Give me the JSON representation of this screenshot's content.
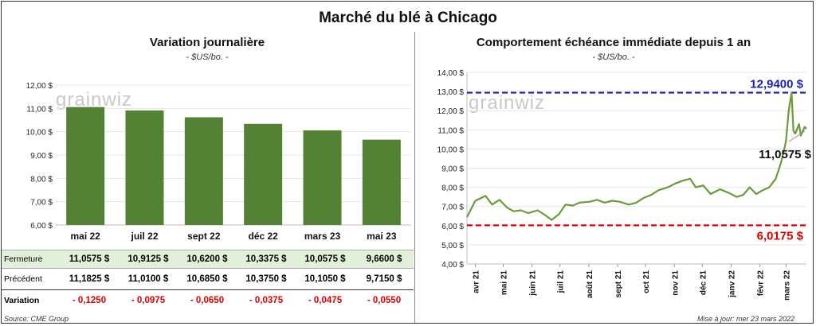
{
  "title": "Marché du blé à Chicago",
  "left_chart": {
    "title": "Variation journalière",
    "unit": "- $US/bo. -"
  },
  "right_chart": {
    "title": "Comportement  échéance immédiate depuis 1 an",
    "unit": "- $US/bo. -"
  },
  "watermark": "grainwiz",
  "table": {
    "rows": [
      {
        "label": "Fermeture",
        "values": [
          "11,0575 $",
          "10,9125 $",
          "10,6200 $",
          "10,3375 $",
          "10,0575 $",
          "9,6600 $"
        ]
      },
      {
        "label": "Précédent",
        "values": [
          "11,1825 $",
          "11,0100 $",
          "10,6850 $",
          "10,3750 $",
          "10,1050 $",
          "9,7150 $"
        ]
      },
      {
        "label": "Variation",
        "values": [
          "- 0,1250",
          "- 0,0975",
          "- 0,0650",
          "- 0,0375",
          "- 0,0475",
          "- 0,0550"
        ]
      }
    ]
  },
  "source": "Source: CME Group",
  "updated": "Mise à jour: mer 23 mars 2022",
  "colors": {
    "bar": "#548235",
    "line": "#6a9a3a",
    "high": "#1f1fb4",
    "low": "#e00000"
  },
  "chart_data": [
    {
      "type": "bar",
      "title": "Variation journalière",
      "categories": [
        "mai 22",
        "juil 22",
        "sept 22",
        "déc 22",
        "mars 23",
        "mai 23"
      ],
      "values": [
        11.0575,
        10.9125,
        10.62,
        10.3375,
        10.0575,
        9.66
      ],
      "ylim": [
        6,
        12
      ],
      "yticks": [
        "6,00 $",
        "7,00 $",
        "8,00 $",
        "9,00 $",
        "10,00 $",
        "11,00 $",
        "12,00 $"
      ],
      "ylabel": "$US/bo."
    },
    {
      "type": "line",
      "title": "Comportement  échéance immédiate depuis 1 an",
      "ylim": [
        4,
        14
      ],
      "yticks": [
        "4,00 $",
        "5,00 $",
        "6,00 $",
        "7,00 $",
        "8,00 $",
        "9,00 $",
        "10,00 $",
        "11,00 $",
        "12,00 $",
        "13,00 $",
        "14,00 $"
      ],
      "xticks": [
        "avr 21",
        "mai 21",
        "juin 21",
        "juil 21",
        "août 21",
        "sept 21",
        "oct 21",
        "nov 21",
        "déc 21",
        "janv 22",
        "févr 22",
        "mars 22"
      ],
      "series": [
        {
          "x": [
            "2021-03-23",
            "2021-04-01",
            "2021-04-12",
            "2021-04-19",
            "2021-04-27",
            "2021-05-05",
            "2021-05-12",
            "2021-05-20",
            "2021-05-28",
            "2021-06-07",
            "2021-06-15",
            "2021-06-22",
            "2021-06-30",
            "2021-07-07",
            "2021-07-15",
            "2021-07-22",
            "2021-08-02",
            "2021-08-10",
            "2021-08-18",
            "2021-08-26",
            "2021-09-03",
            "2021-09-13",
            "2021-09-21",
            "2021-09-29",
            "2021-10-07",
            "2021-10-15",
            "2021-10-25",
            "2021-11-02",
            "2021-11-10",
            "2021-11-18",
            "2021-11-24",
            "2021-12-02",
            "2021-12-10",
            "2021-12-20",
            "2021-12-30",
            "2022-01-07",
            "2022-01-14",
            "2022-01-21",
            "2022-01-28",
            "2022-02-04",
            "2022-02-11",
            "2022-02-18",
            "2022-02-24",
            "2022-03-01",
            "2022-03-04",
            "2022-03-07",
            "2022-03-09",
            "2022-03-11",
            "2022-03-15",
            "2022-03-17",
            "2022-03-21",
            "2022-03-23"
          ],
          "values": [
            6.45,
            7.3,
            7.55,
            7.1,
            7.35,
            6.95,
            6.75,
            6.8,
            6.65,
            6.8,
            6.55,
            6.3,
            6.6,
            7.1,
            7.05,
            7.2,
            7.25,
            7.35,
            7.2,
            7.3,
            7.25,
            7.1,
            7.2,
            7.45,
            7.6,
            7.85,
            8.0,
            8.2,
            8.35,
            8.45,
            8.0,
            8.1,
            7.65,
            7.9,
            7.7,
            7.5,
            7.6,
            8.0,
            7.65,
            7.85,
            8.0,
            8.45,
            9.35,
            10.4,
            12.0,
            12.94,
            10.95,
            10.8,
            11.3,
            10.7,
            11.15,
            11.0575
          ]
        }
      ],
      "reference_lines": [
        {
          "label": "12,9400 $",
          "value": 12.94
        },
        {
          "label": "6,0175 $",
          "value": 6.0175
        }
      ],
      "last_label": "11,0575 $"
    }
  ]
}
